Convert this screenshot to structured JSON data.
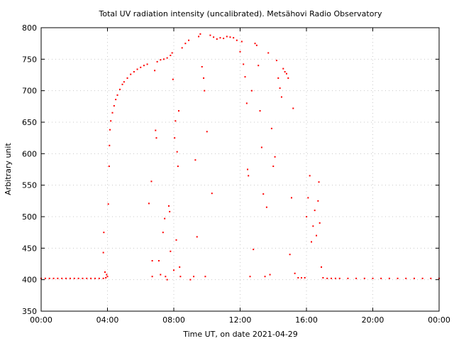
{
  "chart_data": {
    "type": "scatter",
    "title": "Total UV radiation intensity (uncalibrated). Metsähovi Radio Observatory",
    "xlabel": "Time UT, on date 2021-04-29",
    "ylabel": "Arbitrary unit",
    "x_unit": "hours UT",
    "xlim": [
      0,
      24
    ],
    "ylim": [
      350,
      800
    ],
    "x_ticks": [
      0,
      4,
      8,
      12,
      16,
      20,
      24
    ],
    "x_tick_labels": [
      "00:00",
      "04:00",
      "08:00",
      "12:00",
      "16:00",
      "20:00",
      "00:00"
    ],
    "y_ticks": [
      350,
      400,
      450,
      500,
      550,
      600,
      650,
      700,
      750,
      800
    ],
    "y_tick_labels": [
      "350",
      "400",
      "450",
      "500",
      "550",
      "600",
      "650",
      "700",
      "750",
      "800"
    ],
    "grid": true,
    "marker_color": "#ff0000",
    "series": [
      {
        "points": [
          [
            0.0,
            402
          ],
          [
            0.25,
            402
          ],
          [
            0.5,
            402
          ],
          [
            0.75,
            402
          ],
          [
            1.0,
            402
          ],
          [
            1.25,
            402
          ],
          [
            1.5,
            402
          ],
          [
            1.75,
            402
          ],
          [
            2.0,
            402
          ],
          [
            2.25,
            402
          ],
          [
            2.5,
            402
          ],
          [
            2.75,
            402
          ],
          [
            3.0,
            402
          ],
          [
            3.25,
            402
          ],
          [
            3.5,
            402
          ],
          [
            3.75,
            402
          ],
          [
            3.9,
            403
          ],
          [
            3.75,
            443
          ],
          [
            3.78,
            475
          ],
          [
            3.85,
            412
          ],
          [
            3.95,
            408
          ],
          [
            4.0,
            405
          ],
          [
            4.05,
            520
          ],
          [
            4.1,
            580
          ],
          [
            4.12,
            613
          ],
          [
            4.15,
            638
          ],
          [
            4.2,
            652
          ],
          [
            4.3,
            665
          ],
          [
            4.4,
            676
          ],
          [
            4.5,
            686
          ],
          [
            4.6,
            693
          ],
          [
            4.75,
            702
          ],
          [
            4.9,
            710
          ],
          [
            5.0,
            714
          ],
          [
            5.2,
            720
          ],
          [
            5.4,
            726
          ],
          [
            5.6,
            730
          ],
          [
            5.8,
            734
          ],
          [
            6.0,
            737
          ],
          [
            6.2,
            740
          ],
          [
            6.4,
            742
          ],
          [
            6.5,
            521
          ],
          [
            6.65,
            556
          ],
          [
            6.7,
            430
          ],
          [
            6.7,
            405
          ],
          [
            6.85,
            732
          ],
          [
            6.9,
            637
          ],
          [
            6.95,
            625
          ],
          [
            7.0,
            746
          ],
          [
            7.2,
            749
          ],
          [
            7.4,
            750
          ],
          [
            7.6,
            752
          ],
          [
            7.8,
            756
          ],
          [
            7.1,
            430
          ],
          [
            7.2,
            408
          ],
          [
            7.35,
            475
          ],
          [
            7.45,
            497
          ],
          [
            7.5,
            405
          ],
          [
            7.6,
            400
          ],
          [
            7.7,
            517
          ],
          [
            7.75,
            508
          ],
          [
            7.8,
            445
          ],
          [
            7.9,
            760
          ],
          [
            7.95,
            718
          ],
          [
            8.0,
            415
          ],
          [
            8.05,
            625
          ],
          [
            8.1,
            652
          ],
          [
            8.15,
            463
          ],
          [
            8.2,
            603
          ],
          [
            8.25,
            580
          ],
          [
            8.3,
            668
          ],
          [
            8.35,
            420
          ],
          [
            8.4,
            405
          ],
          [
            8.5,
            768
          ],
          [
            8.7,
            775
          ],
          [
            8.9,
            780
          ],
          [
            9.0,
            400
          ],
          [
            9.2,
            405
          ],
          [
            9.3,
            590
          ],
          [
            9.4,
            468
          ],
          [
            9.5,
            786
          ],
          [
            9.6,
            790
          ],
          [
            9.7,
            738
          ],
          [
            9.8,
            720
          ],
          [
            9.85,
            700
          ],
          [
            9.9,
            405
          ],
          [
            10.0,
            635
          ],
          [
            10.2,
            788
          ],
          [
            10.3,
            537
          ],
          [
            10.4,
            785
          ],
          [
            10.6,
            782
          ],
          [
            10.8,
            784
          ],
          [
            11.0,
            783
          ],
          [
            11.2,
            786
          ],
          [
            11.4,
            785
          ],
          [
            11.6,
            784
          ],
          [
            11.8,
            780
          ],
          [
            12.0,
            762
          ],
          [
            12.1,
            778
          ],
          [
            12.2,
            742
          ],
          [
            12.3,
            722
          ],
          [
            12.4,
            680
          ],
          [
            12.45,
            575
          ],
          [
            12.5,
            565
          ],
          [
            12.6,
            405
          ],
          [
            12.7,
            700
          ],
          [
            12.8,
            448
          ],
          [
            12.9,
            775
          ],
          [
            13.0,
            772
          ],
          [
            13.1,
            740
          ],
          [
            13.2,
            668
          ],
          [
            13.3,
            610
          ],
          [
            13.4,
            536
          ],
          [
            13.5,
            405
          ],
          [
            13.6,
            515
          ],
          [
            13.7,
            760
          ],
          [
            13.8,
            408
          ],
          [
            13.9,
            640
          ],
          [
            14.0,
            580
          ],
          [
            14.1,
            595
          ],
          [
            14.2,
            748
          ],
          [
            14.3,
            720
          ],
          [
            14.4,
            704
          ],
          [
            14.5,
            690
          ],
          [
            14.6,
            735
          ],
          [
            14.7,
            730
          ],
          [
            14.8,
            727
          ],
          [
            14.9,
            720
          ],
          [
            15.0,
            440
          ],
          [
            15.1,
            530
          ],
          [
            15.2,
            672
          ],
          [
            15.3,
            410
          ],
          [
            15.5,
            403
          ],
          [
            15.7,
            403
          ],
          [
            15.9,
            403
          ],
          [
            16.0,
            500
          ],
          [
            16.1,
            530
          ],
          [
            16.2,
            565
          ],
          [
            16.3,
            460
          ],
          [
            16.4,
            485
          ],
          [
            16.5,
            510
          ],
          [
            16.6,
            470
          ],
          [
            16.7,
            525
          ],
          [
            16.75,
            555
          ],
          [
            16.8,
            490
          ],
          [
            16.9,
            420
          ],
          [
            17.0,
            403
          ],
          [
            17.25,
            402
          ],
          [
            17.5,
            402
          ],
          [
            17.75,
            402
          ],
          [
            18.0,
            402
          ],
          [
            18.5,
            402
          ],
          [
            19.0,
            402
          ],
          [
            19.5,
            402
          ],
          [
            20.0,
            402
          ],
          [
            20.5,
            402
          ],
          [
            21.0,
            402
          ],
          [
            21.5,
            402
          ],
          [
            22.0,
            402
          ],
          [
            22.5,
            402
          ],
          [
            23.0,
            402
          ],
          [
            23.5,
            402
          ],
          [
            24.0,
            402
          ]
        ]
      }
    ]
  }
}
